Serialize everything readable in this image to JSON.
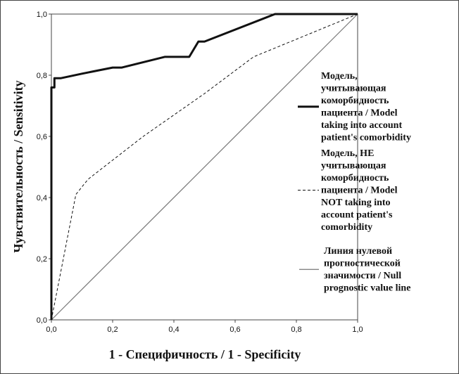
{
  "chart_data": {
    "type": "line",
    "title": "",
    "xlabel": "1 - Специфичность / 1 - Specificity",
    "ylabel": "Чувствительность / Sensitivity",
    "xlim": [
      0,
      1
    ],
    "ylim": [
      0,
      1
    ],
    "x_ticks": [
      "0,0",
      "0,2",
      "0,4",
      "0,6",
      "0,8",
      "1,0"
    ],
    "y_ticks": [
      "0,0",
      "0,2",
      "0,4",
      "0,6",
      "0,8",
      "1,0"
    ],
    "grid": false,
    "legend_position": "right",
    "series": [
      {
        "name": "Модель, учитывающая коморбидность пациента / Model taking into account patient's comorbidity",
        "legend_lines": [
          "Модель,",
          "учитывающая",
          "коморбидность",
          "пациента / Model",
          "taking into account",
          "patient's comorbidity"
        ],
        "style": "thick-solid",
        "color": "#111111",
        "x": [
          0.0,
          0.0,
          0.01,
          0.01,
          0.03,
          0.1,
          0.2,
          0.23,
          0.37,
          0.45,
          0.48,
          0.5,
          0.73,
          0.8,
          1.0
        ],
        "y": [
          0.0,
          0.76,
          0.76,
          0.79,
          0.79,
          0.805,
          0.825,
          0.825,
          0.86,
          0.86,
          0.91,
          0.91,
          1.0,
          1.0,
          1.0
        ]
      },
      {
        "name": "Модель, НЕ учитывающая коморбидность пациента / Model NOT taking into account patient's comorbidity",
        "legend_lines": [
          "Модель, НЕ",
          "учитывающая",
          "коморбидность",
          "пациента / Model",
          "NOT taking into",
          "account patient's",
          "comorbidity"
        ],
        "style": "dashed",
        "color": "#111111",
        "x": [
          0.0,
          0.08,
          0.12,
          0.3,
          0.5,
          0.66,
          1.0
        ],
        "y": [
          0.0,
          0.41,
          0.46,
          0.6,
          0.74,
          0.86,
          1.0
        ]
      },
      {
        "name": "Линия нулевой прогностической значимости / Null prognostic value line",
        "legend_lines": [
          "Линия нулевой",
          "прогностической",
          "значимости / Null",
          "prognostic value line"
        ],
        "style": "thin-solid",
        "color": "#777777",
        "x": [
          0.0,
          1.0
        ],
        "y": [
          0.0,
          1.0
        ]
      }
    ]
  }
}
